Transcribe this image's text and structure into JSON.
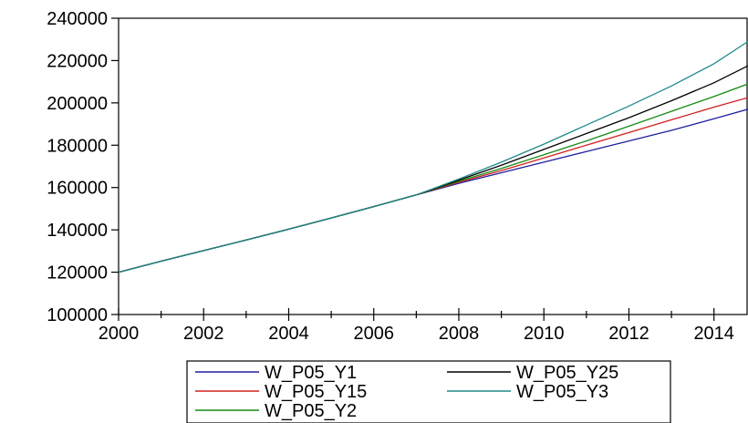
{
  "chart_data": {
    "type": "line",
    "title": "",
    "xlabel": "",
    "ylabel": "",
    "xlim": [
      2000,
      2014.8
    ],
    "ylim": [
      100000,
      240000
    ],
    "y_ticks": [
      100000,
      120000,
      140000,
      160000,
      180000,
      200000,
      220000,
      240000
    ],
    "y_tick_labels": [
      "100000",
      "120000",
      "140000",
      "160000",
      "180000",
      "200000",
      "220000",
      "240000"
    ],
    "x_ticks": [
      2000,
      2002,
      2004,
      2006,
      2008,
      2010,
      2012,
      2014
    ],
    "x_tick_labels": [
      "2000",
      "2002",
      "2004",
      "2006",
      "2008",
      "2010",
      "2012",
      "2014"
    ],
    "grid": false,
    "legend_position": "bottom",
    "x": [
      2000,
      2001,
      2002,
      2003,
      2004,
      2005,
      2006,
      2007,
      2008,
      2009,
      2010,
      2011,
      2012,
      2013,
      2014,
      2014.8
    ],
    "series": [
      {
        "name": "W_P05_Y1",
        "color": "#1f1fa0",
        "values": [
          120000,
          125200,
          130200,
          135200,
          140300,
          145600,
          151000,
          156500,
          162000,
          167000,
          172000,
          177000,
          182000,
          187000,
          192500,
          197000
        ]
      },
      {
        "name": "W_P05_Y15",
        "color": "#d22020",
        "values": [
          120000,
          125200,
          130200,
          135200,
          140300,
          145600,
          151000,
          156500,
          162500,
          168000,
          174000,
          180000,
          186000,
          192000,
          198000,
          202500
        ]
      },
      {
        "name": "W_P05_Y2",
        "color": "#138a13",
        "values": [
          120000,
          125200,
          130200,
          135200,
          140300,
          145600,
          151000,
          156500,
          163000,
          169000,
          175500,
          182000,
          189000,
          196000,
          203000,
          209000
        ]
      },
      {
        "name": "W_P05_Y25",
        "color": "#000000",
        "values": [
          120000,
          125200,
          130200,
          135200,
          140300,
          145600,
          151000,
          156500,
          163500,
          170500,
          178000,
          185500,
          193000,
          201000,
          209500,
          217500
        ]
      },
      {
        "name": "W_P05_Y3",
        "color": "#208a8a",
        "values": [
          120000,
          125200,
          130200,
          135200,
          140300,
          145600,
          151000,
          156500,
          164000,
          172000,
          180500,
          189500,
          198500,
          208000,
          218500,
          229000
        ]
      }
    ]
  },
  "legend": {
    "rows": [
      [
        {
          "name": "W_P05_Y1",
          "color": "#1f1fa0"
        },
        {
          "name": "W_P05_Y25",
          "color": "#000000"
        }
      ],
      [
        {
          "name": "W_P05_Y15",
          "color": "#d22020"
        },
        {
          "name": "W_P05_Y3",
          "color": "#208a8a"
        }
      ],
      [
        {
          "name": "W_P05_Y2",
          "color": "#138a13"
        }
      ]
    ]
  }
}
